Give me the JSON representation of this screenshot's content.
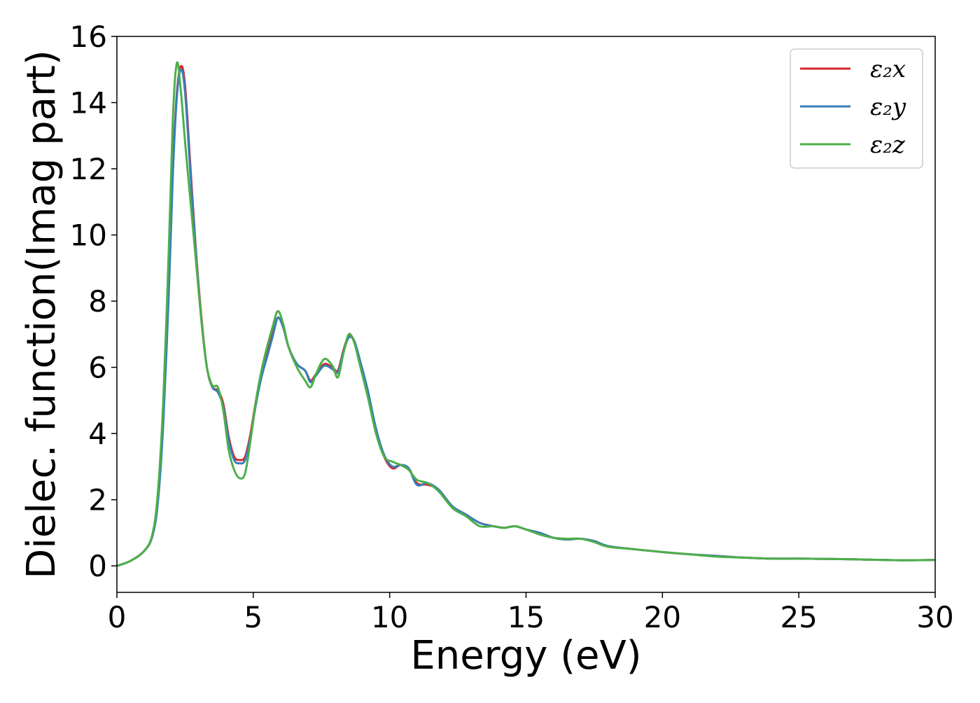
{
  "chart_data": {
    "type": "line",
    "title": "",
    "xlabel": "Energy (eV)",
    "ylabel": "Dielec. function(Imag part)",
    "xlim": [
      0,
      30
    ],
    "ylim": [
      -0.8,
      16
    ],
    "xticks": [
      "0",
      "5",
      "10",
      "15",
      "20",
      "25",
      "30"
    ],
    "yticks": [
      "0",
      "2",
      "4",
      "6",
      "8",
      "10",
      "12",
      "14",
      "16"
    ],
    "grid": false,
    "legend_position": "top-right",
    "series": [
      {
        "name": "ε₂x",
        "color": "#d62728",
        "x": [
          0,
          0.5,
          1.0,
          1.3,
          1.5,
          1.7,
          1.9,
          2.05,
          2.2,
          2.35,
          2.5,
          2.7,
          2.9,
          3.1,
          3.3,
          3.5,
          3.7,
          3.9,
          4.1,
          4.3,
          4.5,
          4.7,
          4.9,
          5.1,
          5.3,
          5.5,
          5.7,
          5.9,
          6.1,
          6.3,
          6.6,
          6.9,
          7.1,
          7.3,
          7.6,
          7.9,
          8.1,
          8.3,
          8.5,
          8.7,
          8.9,
          9.2,
          9.5,
          9.8,
          10.1,
          10.4,
          10.7,
          11.0,
          11.4,
          11.8,
          12.3,
          12.8,
          13.3,
          13.8,
          14.2,
          14.6,
          15.0,
          15.5,
          16.0,
          16.5,
          17.0,
          17.5,
          18.0,
          19.0,
          20.0,
          21.0,
          22.0,
          23.0,
          24.0,
          25.0,
          26.0,
          27.0,
          28.0,
          29.0,
          30.0
        ],
        "values": [
          0.0,
          0.15,
          0.45,
          0.9,
          2.0,
          4.5,
          8.5,
          12.0,
          14.3,
          15.1,
          14.5,
          12.0,
          9.5,
          7.5,
          6.0,
          5.4,
          5.3,
          4.9,
          3.9,
          3.3,
          3.2,
          3.3,
          4.0,
          5.0,
          5.8,
          6.4,
          7.0,
          7.5,
          7.2,
          6.6,
          6.1,
          5.9,
          5.6,
          5.8,
          6.1,
          6.0,
          5.9,
          6.5,
          6.95,
          6.8,
          6.2,
          5.2,
          4.1,
          3.3,
          2.95,
          3.05,
          2.95,
          2.5,
          2.45,
          2.3,
          1.8,
          1.55,
          1.3,
          1.2,
          1.15,
          1.2,
          1.1,
          1.0,
          0.85,
          0.8,
          0.82,
          0.75,
          0.6,
          0.5,
          0.42,
          0.35,
          0.3,
          0.25,
          0.22,
          0.22,
          0.21,
          0.2,
          0.18,
          0.17,
          0.18
        ]
      },
      {
        "name": "ε₂y",
        "color": "#377eb8",
        "x": [
          0,
          0.5,
          1.0,
          1.3,
          1.5,
          1.7,
          1.9,
          2.05,
          2.2,
          2.35,
          2.5,
          2.7,
          2.9,
          3.1,
          3.3,
          3.5,
          3.7,
          3.9,
          4.1,
          4.3,
          4.5,
          4.7,
          4.9,
          5.1,
          5.3,
          5.5,
          5.7,
          5.9,
          6.1,
          6.3,
          6.6,
          6.9,
          7.1,
          7.3,
          7.6,
          7.9,
          8.1,
          8.3,
          8.5,
          8.7,
          8.9,
          9.2,
          9.5,
          9.8,
          10.1,
          10.4,
          10.7,
          11.0,
          11.4,
          11.8,
          12.3,
          12.8,
          13.3,
          13.8,
          14.2,
          14.6,
          15.0,
          15.5,
          16.0,
          16.5,
          17.0,
          17.5,
          18.0,
          19.0,
          20.0,
          21.0,
          22.0,
          23.0,
          24.0,
          25.0,
          26.0,
          27.0,
          28.0,
          29.0,
          30.0
        ],
        "values": [
          0.0,
          0.15,
          0.45,
          0.9,
          1.9,
          4.3,
          8.2,
          11.8,
          14.2,
          15.0,
          14.3,
          11.8,
          9.4,
          7.4,
          6.0,
          5.4,
          5.25,
          4.8,
          3.8,
          3.2,
          3.1,
          3.2,
          3.9,
          4.9,
          5.7,
          6.3,
          6.9,
          7.5,
          7.2,
          6.6,
          6.1,
          5.9,
          5.55,
          5.75,
          6.05,
          5.95,
          5.85,
          6.45,
          6.9,
          6.8,
          6.25,
          5.3,
          4.15,
          3.35,
          3.0,
          3.05,
          2.95,
          2.45,
          2.5,
          2.3,
          1.8,
          1.55,
          1.3,
          1.2,
          1.15,
          1.2,
          1.1,
          1.0,
          0.85,
          0.8,
          0.82,
          0.75,
          0.6,
          0.5,
          0.42,
          0.35,
          0.3,
          0.25,
          0.22,
          0.22,
          0.21,
          0.2,
          0.18,
          0.17,
          0.18
        ]
      },
      {
        "name": "ε₂z",
        "color": "#4daf4a",
        "x": [
          0,
          0.5,
          1.0,
          1.3,
          1.5,
          1.7,
          1.9,
          2.05,
          2.2,
          2.35,
          2.5,
          2.7,
          2.9,
          3.1,
          3.3,
          3.5,
          3.7,
          3.9,
          4.1,
          4.3,
          4.5,
          4.7,
          4.9,
          5.1,
          5.3,
          5.5,
          5.7,
          5.9,
          6.1,
          6.3,
          6.6,
          6.9,
          7.1,
          7.3,
          7.6,
          7.9,
          8.1,
          8.3,
          8.5,
          8.7,
          8.9,
          9.2,
          9.5,
          9.8,
          10.1,
          10.4,
          10.7,
          11.0,
          11.4,
          11.8,
          12.3,
          12.8,
          13.3,
          13.8,
          14.2,
          14.6,
          15.0,
          15.5,
          16.0,
          16.5,
          17.0,
          17.5,
          18.0,
          19.0,
          20.0,
          21.0,
          22.0,
          23.0,
          24.0,
          25.0,
          26.0,
          27.0,
          28.0,
          29.0,
          30.0
        ],
        "values": [
          0.0,
          0.15,
          0.45,
          0.95,
          2.2,
          5.0,
          9.5,
          13.5,
          15.2,
          14.3,
          12.8,
          11.0,
          9.2,
          7.4,
          6.0,
          5.45,
          5.4,
          4.7,
          3.5,
          2.9,
          2.65,
          2.8,
          3.8,
          5.0,
          5.9,
          6.6,
          7.2,
          7.7,
          7.3,
          6.6,
          6.0,
          5.6,
          5.4,
          5.8,
          6.25,
          6.05,
          5.7,
          6.4,
          7.0,
          6.75,
          6.1,
          5.1,
          4.0,
          3.3,
          3.15,
          3.05,
          2.9,
          2.6,
          2.5,
          2.25,
          1.75,
          1.5,
          1.2,
          1.2,
          1.15,
          1.2,
          1.1,
          0.95,
          0.85,
          0.82,
          0.82,
          0.72,
          0.58,
          0.5,
          0.42,
          0.35,
          0.28,
          0.25,
          0.22,
          0.22,
          0.21,
          0.2,
          0.18,
          0.17,
          0.18
        ]
      }
    ]
  }
}
